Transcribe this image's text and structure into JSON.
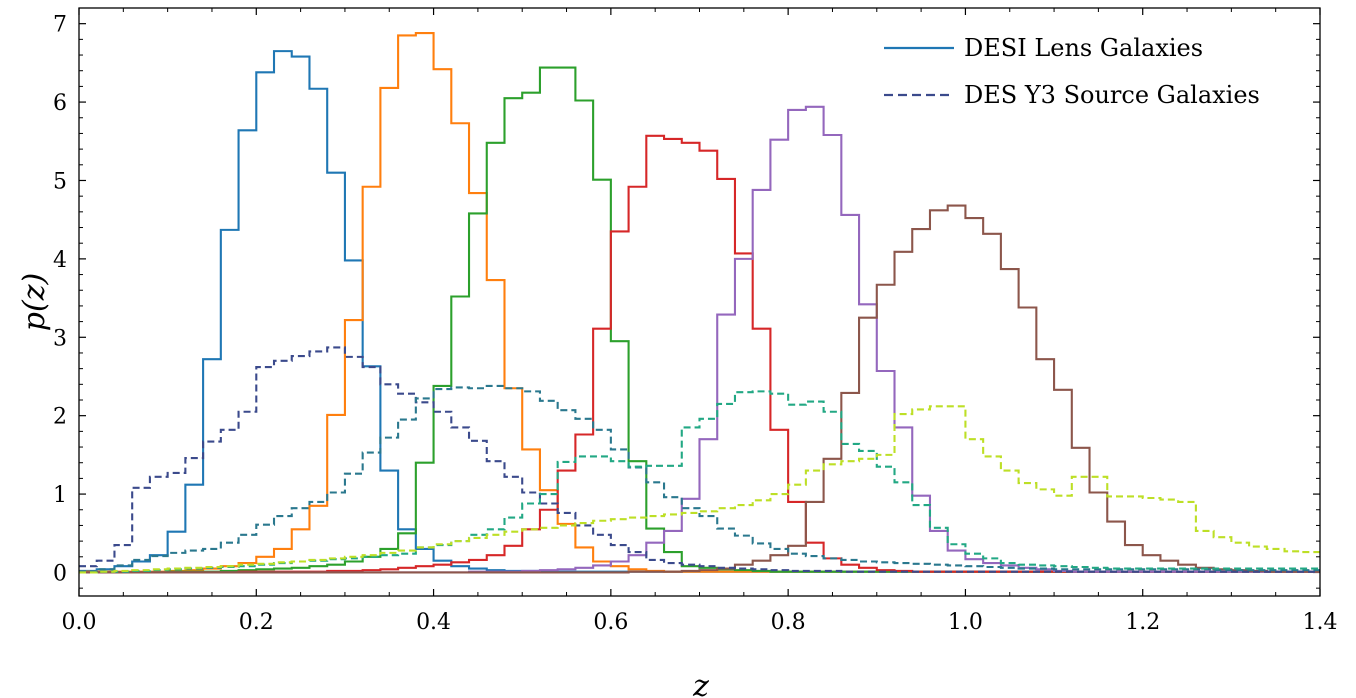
{
  "chart_data": {
    "type": "line",
    "xlabel": "z",
    "ylabel": "p(z)",
    "xlim": [
      0.0,
      1.4
    ],
    "ylim": [
      -0.3,
      7.2
    ],
    "x_ticks": [
      "0.0",
      "0.2",
      "0.4",
      "0.6",
      "0.8",
      "1.0",
      "1.2",
      "1.4"
    ],
    "y_ticks": [
      "0",
      "1",
      "2",
      "3",
      "4",
      "5",
      "6",
      "7"
    ],
    "legend_position": "top-right",
    "legend": [
      {
        "label": "DESI Lens Galaxies",
        "style": "solid",
        "color": "#1f77b4"
      },
      {
        "label": "DES Y3 Source Galaxies",
        "style": "dashed",
        "color": "#3b4a8c"
      }
    ],
    "bin_edges": [
      0.0,
      0.02,
      0.04,
      0.06,
      0.08,
      0.1,
      0.12,
      0.14,
      0.16,
      0.18,
      0.2,
      0.22,
      0.24,
      0.26,
      0.28,
      0.3,
      0.32,
      0.34,
      0.36,
      0.38,
      0.4,
      0.42,
      0.44,
      0.46,
      0.48,
      0.5,
      0.52,
      0.54,
      0.56,
      0.58,
      0.6,
      0.62,
      0.64,
      0.66,
      0.68,
      0.7,
      0.72,
      0.74,
      0.76,
      0.78,
      0.8,
      0.82,
      0.84,
      0.86,
      0.88,
      0.9,
      0.92,
      0.94,
      0.96,
      0.98,
      1.0,
      1.02,
      1.04,
      1.06,
      1.08,
      1.1,
      1.12,
      1.14,
      1.16,
      1.18,
      1.2,
      1.22,
      1.24,
      1.26,
      1.28,
      1.3,
      1.32,
      1.34,
      1.36,
      1.38,
      1.4
    ],
    "series": [
      {
        "style": "solid",
        "color": "#1f77b4",
        "values": [
          0.02,
          0.04,
          0.08,
          0.14,
          0.22,
          0.52,
          1.12,
          2.72,
          4.37,
          5.64,
          6.38,
          6.65,
          6.58,
          6.17,
          5.1,
          3.98,
          2.63,
          1.3,
          0.55,
          0.3,
          0.15,
          0.08,
          0.05,
          0.03,
          0.02,
          0.02,
          0.01,
          0.01,
          0.01,
          0.01,
          0.01,
          0.01,
          0.01,
          0.01,
          0.01,
          0.01,
          0.01,
          0.01,
          0.01,
          0.01,
          0.01,
          0.01,
          0.01,
          0.01,
          0.01,
          0.01,
          0.01,
          0.01,
          0.01,
          0.01,
          0.01,
          0.01,
          0.01,
          0.01,
          0.01,
          0.01,
          0.01,
          0.01,
          0.01,
          0.01,
          0.01,
          0.01,
          0.01,
          0.01,
          0.01,
          0.01,
          0.01,
          0.01,
          0.01,
          0.01
        ]
      },
      {
        "style": "solid",
        "color": "#ff7f0e",
        "values": [
          0.01,
          0.01,
          0.01,
          0.01,
          0.01,
          0.02,
          0.03,
          0.05,
          0.08,
          0.12,
          0.2,
          0.3,
          0.55,
          0.85,
          2.01,
          3.22,
          4.92,
          6.18,
          6.85,
          6.88,
          6.42,
          5.73,
          4.84,
          3.73,
          2.35,
          1.57,
          1.05,
          0.62,
          0.32,
          0.14,
          0.08,
          0.04,
          0.02,
          0.01,
          0.01,
          0.01,
          0.01,
          0.01,
          0.01,
          0.01,
          0.01,
          0.01,
          0.01,
          0.01,
          0.01,
          0.01,
          0.01,
          0.01,
          0.01,
          0.01,
          0.01,
          0.01,
          0.01,
          0.01,
          0.01,
          0.01,
          0.01,
          0.01,
          0.01,
          0.01,
          0.01,
          0.01,
          0.01,
          0.01,
          0.01,
          0.01,
          0.01,
          0.01,
          0.01,
          0.01
        ]
      },
      {
        "style": "solid",
        "color": "#2ca02c",
        "values": [
          0.0,
          0.0,
          0.0,
          0.0,
          0.0,
          0.01,
          0.01,
          0.01,
          0.02,
          0.03,
          0.04,
          0.05,
          0.06,
          0.08,
          0.1,
          0.14,
          0.2,
          0.3,
          0.5,
          1.4,
          2.38,
          3.52,
          4.58,
          5.48,
          6.05,
          6.12,
          6.44,
          6.44,
          6.02,
          5.01,
          2.95,
          1.42,
          0.56,
          0.26,
          0.08,
          0.06,
          0.04,
          0.03,
          0.02,
          0.01,
          0.01,
          0.01,
          0.01,
          0.01,
          0.01,
          0.01,
          0.01,
          0.01,
          0.01,
          0.01,
          0.01,
          0.01,
          0.01,
          0.01,
          0.01,
          0.01,
          0.01,
          0.01,
          0.01,
          0.01,
          0.01,
          0.01,
          0.01,
          0.01,
          0.01,
          0.01,
          0.01,
          0.01,
          0.01,
          0.01
        ]
      },
      {
        "style": "solid",
        "color": "#d62728",
        "values": [
          0.0,
          0.0,
          0.0,
          0.0,
          0.0,
          0.0,
          0.0,
          0.0,
          0.0,
          0.01,
          0.01,
          0.01,
          0.01,
          0.01,
          0.02,
          0.02,
          0.03,
          0.04,
          0.06,
          0.08,
          0.1,
          0.13,
          0.16,
          0.22,
          0.34,
          0.55,
          0.8,
          1.3,
          1.76,
          3.11,
          4.35,
          4.92,
          5.57,
          5.53,
          5.48,
          5.38,
          5.02,
          4.07,
          3.11,
          1.82,
          0.9,
          0.38,
          0.18,
          0.1,
          0.06,
          0.03,
          0.02,
          0.01,
          0.01,
          0.01,
          0.01,
          0.01,
          0.01,
          0.01,
          0.01,
          0.01,
          0.01,
          0.01,
          0.01,
          0.01,
          0.01,
          0.01,
          0.01,
          0.01,
          0.01,
          0.01,
          0.01,
          0.01,
          0.01,
          0.01
        ]
      },
      {
        "style": "solid",
        "color": "#9467bd",
        "values": [
          0.0,
          0.0,
          0.0,
          0.0,
          0.0,
          0.0,
          0.0,
          0.0,
          0.0,
          0.0,
          0.0,
          0.0,
          0.0,
          0.0,
          0.0,
          0.0,
          0.0,
          0.0,
          0.0,
          0.0,
          0.0,
          0.0,
          0.01,
          0.01,
          0.01,
          0.02,
          0.03,
          0.04,
          0.06,
          0.09,
          0.14,
          0.22,
          0.38,
          0.53,
          0.94,
          1.7,
          3.29,
          4.0,
          4.88,
          5.52,
          5.9,
          5.94,
          5.58,
          4.56,
          3.42,
          2.57,
          1.85,
          0.98,
          0.53,
          0.28,
          0.17,
          0.12,
          0.09,
          0.06,
          0.04,
          0.02,
          0.01,
          0.01,
          0.01,
          0.01,
          0.01,
          0.01,
          0.01,
          0.01,
          0.01,
          0.01,
          0.01,
          0.01,
          0.01,
          0.01
        ]
      },
      {
        "style": "solid",
        "color": "#8c564b",
        "values": [
          0.0,
          0.0,
          0.0,
          0.0,
          0.0,
          0.0,
          0.0,
          0.0,
          0.0,
          0.0,
          0.0,
          0.0,
          0.0,
          0.0,
          0.0,
          0.0,
          0.0,
          0.0,
          0.0,
          0.0,
          0.0,
          0.0,
          0.0,
          0.0,
          0.0,
          0.0,
          0.0,
          0.0,
          0.0,
          0.0,
          0.0,
          0.01,
          0.01,
          0.01,
          0.02,
          0.03,
          0.05,
          0.1,
          0.15,
          0.22,
          0.34,
          0.9,
          1.45,
          2.29,
          3.25,
          3.67,
          4.09,
          4.38,
          4.62,
          4.68,
          4.52,
          4.32,
          3.87,
          3.38,
          2.72,
          2.33,
          1.59,
          1.02,
          0.65,
          0.35,
          0.22,
          0.15,
          0.1,
          0.06,
          0.04,
          0.03,
          0.02,
          0.01,
          0.01,
          0.01
        ]
      },
      {
        "style": "dashed",
        "color": "#3b4a8c",
        "values": [
          0.08,
          0.15,
          0.35,
          1.08,
          1.22,
          1.27,
          1.46,
          1.67,
          1.82,
          2.05,
          2.62,
          2.7,
          2.76,
          2.82,
          2.87,
          2.75,
          2.62,
          2.4,
          2.28,
          2.17,
          2.05,
          1.85,
          1.68,
          1.42,
          1.22,
          1.02,
          0.88,
          0.76,
          0.6,
          0.48,
          0.35,
          0.26,
          0.16,
          0.12,
          0.1,
          0.08,
          0.06,
          0.05,
          0.04,
          0.03,
          0.02,
          0.02,
          0.02,
          0.01,
          0.01,
          0.01,
          0.01,
          0.01,
          0.01,
          0.01,
          0.01,
          0.01,
          0.01,
          0.01,
          0.01,
          0.01,
          0.01,
          0.01,
          0.01,
          0.01,
          0.01,
          0.01,
          0.01,
          0.01,
          0.01,
          0.01,
          0.01,
          0.01,
          0.01,
          0.01
        ]
      },
      {
        "style": "dashed",
        "color": "#2a788e",
        "values": [
          0.01,
          0.04,
          0.09,
          0.16,
          0.21,
          0.25,
          0.28,
          0.3,
          0.38,
          0.48,
          0.61,
          0.72,
          0.82,
          0.9,
          1.02,
          1.26,
          1.53,
          1.72,
          1.95,
          2.22,
          2.34,
          2.36,
          2.35,
          2.38,
          2.35,
          2.31,
          2.19,
          2.07,
          1.96,
          1.82,
          1.57,
          1.34,
          1.15,
          0.96,
          0.82,
          0.72,
          0.56,
          0.47,
          0.37,
          0.3,
          0.24,
          0.21,
          0.18,
          0.16,
          0.14,
          0.13,
          0.12,
          0.11,
          0.1,
          0.09,
          0.08,
          0.07,
          0.06,
          0.05,
          0.05,
          0.04,
          0.04,
          0.04,
          0.04,
          0.04,
          0.04,
          0.04,
          0.04,
          0.04,
          0.03,
          0.03,
          0.03,
          0.03,
          0.03,
          0.03
        ]
      },
      {
        "style": "dashed",
        "color": "#22a884",
        "values": [
          0.0,
          0.01,
          0.01,
          0.02,
          0.03,
          0.04,
          0.05,
          0.06,
          0.07,
          0.08,
          0.1,
          0.12,
          0.14,
          0.15,
          0.17,
          0.18,
          0.2,
          0.22,
          0.24,
          0.32,
          0.35,
          0.4,
          0.48,
          0.55,
          0.7,
          0.88,
          1.0,
          1.41,
          1.48,
          1.48,
          1.42,
          1.35,
          1.36,
          1.36,
          1.85,
          1.96,
          2.15,
          2.3,
          2.31,
          2.28,
          2.14,
          2.18,
          2.05,
          1.64,
          1.55,
          1.35,
          1.15,
          0.86,
          0.57,
          0.36,
          0.24,
          0.18,
          0.12,
          0.1,
          0.09,
          0.08,
          0.07,
          0.06,
          0.05,
          0.05,
          0.05,
          0.05,
          0.05,
          0.05,
          0.05,
          0.05,
          0.05,
          0.05,
          0.05,
          0.05
        ]
      },
      {
        "style": "dashed",
        "color": "#bddf26",
        "values": [
          0.0,
          0.01,
          0.02,
          0.03,
          0.04,
          0.05,
          0.06,
          0.07,
          0.08,
          0.1,
          0.11,
          0.13,
          0.14,
          0.16,
          0.18,
          0.2,
          0.22,
          0.25,
          0.28,
          0.32,
          0.36,
          0.4,
          0.44,
          0.48,
          0.52,
          0.55,
          0.57,
          0.6,
          0.63,
          0.66,
          0.68,
          0.7,
          0.72,
          0.74,
          0.76,
          0.78,
          0.82,
          0.86,
          0.92,
          1.0,
          1.12,
          1.3,
          1.38,
          1.42,
          1.45,
          1.5,
          2.02,
          2.08,
          2.12,
          2.12,
          1.7,
          1.48,
          1.3,
          1.14,
          1.06,
          0.98,
          1.22,
          1.22,
          0.97,
          0.97,
          0.95,
          0.93,
          0.9,
          0.53,
          0.45,
          0.38,
          0.33,
          0.3,
          0.27,
          0.26
        ]
      }
    ]
  }
}
